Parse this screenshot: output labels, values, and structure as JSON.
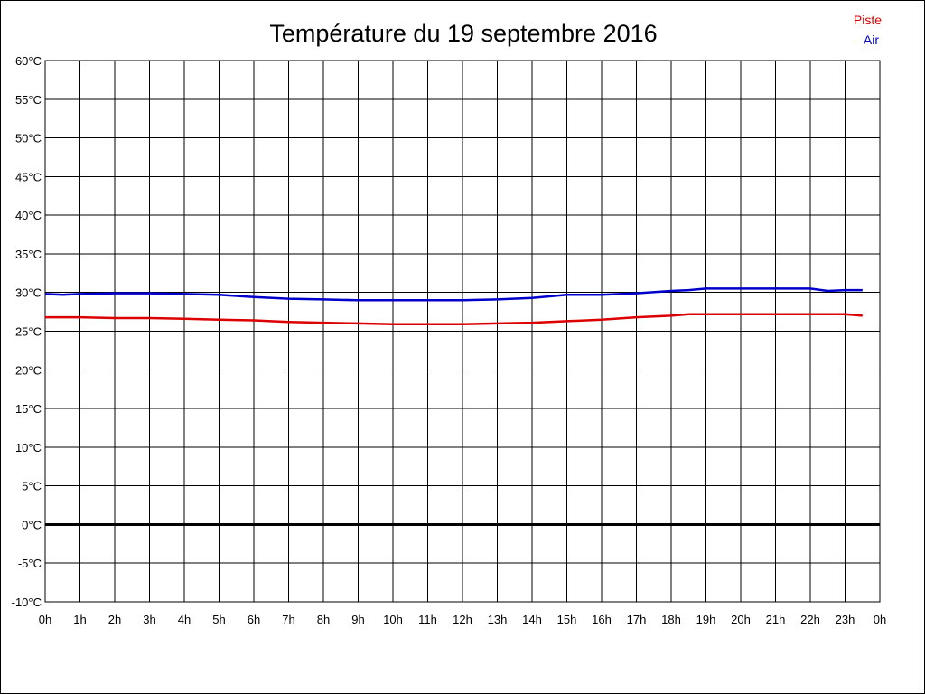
{
  "chart_data": {
    "type": "line",
    "title": "Température du 19 septembre 2016",
    "xlabel": "",
    "ylabel": "",
    "x_ticks": [
      "0h",
      "1h",
      "2h",
      "3h",
      "4h",
      "5h",
      "6h",
      "7h",
      "8h",
      "9h",
      "10h",
      "11h",
      "12h",
      "13h",
      "14h",
      "15h",
      "16h",
      "17h",
      "18h",
      "19h",
      "20h",
      "21h",
      "22h",
      "23h",
      "0h"
    ],
    "y_ticks": [
      "60°C",
      "55°C",
      "50°C",
      "45°C",
      "40°C",
      "35°C",
      "30°C",
      "25°C",
      "20°C",
      "15°C",
      "10°C",
      "5°C",
      "0°C",
      "-5°C",
      "-10°C"
    ],
    "xlim": [
      0,
      24
    ],
    "ylim": [
      -10,
      60
    ],
    "grid": true,
    "legend_position": "top-right",
    "zero_line": true,
    "series": [
      {
        "name": "Piste",
        "color": "#dd0000",
        "x": [
          0,
          1,
          2,
          3,
          4,
          5,
          6,
          7,
          8,
          9,
          10,
          11,
          12,
          13,
          14,
          15,
          16,
          17,
          18,
          18.5,
          19,
          20,
          21,
          22,
          23,
          23.5
        ],
        "y": [
          26.8,
          26.8,
          26.7,
          26.7,
          26.6,
          26.5,
          26.4,
          26.2,
          26.1,
          26.0,
          25.9,
          25.9,
          25.9,
          26.0,
          26.1,
          26.3,
          26.5,
          26.8,
          27.0,
          27.2,
          27.2,
          27.2,
          27.2,
          27.2,
          27.2,
          27.0
        ]
      },
      {
        "name": "Air",
        "color": "#0000cc",
        "x": [
          0,
          0.5,
          1,
          2,
          3,
          4,
          5,
          6,
          7,
          8,
          9,
          10,
          11,
          12,
          13,
          14,
          14.5,
          15,
          16,
          17,
          18,
          18.5,
          19,
          20,
          21,
          22,
          22.5,
          23,
          23.5
        ],
        "y": [
          29.8,
          29.7,
          29.8,
          29.9,
          29.9,
          29.8,
          29.7,
          29.4,
          29.2,
          29.1,
          29.0,
          29.0,
          29.0,
          29.0,
          29.1,
          29.3,
          29.5,
          29.7,
          29.7,
          29.9,
          30.2,
          30.3,
          30.5,
          30.5,
          30.5,
          30.5,
          30.2,
          30.3,
          30.3
        ]
      }
    ]
  }
}
